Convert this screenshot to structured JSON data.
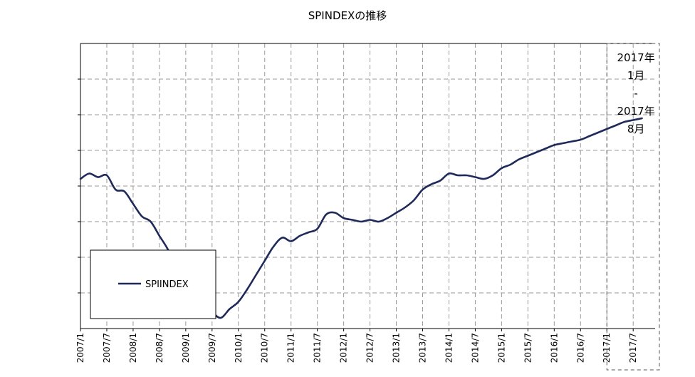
{
  "chart_data": {
    "type": "line",
    "title": "SPINDEXの推移",
    "xlabel": "",
    "ylabel": "",
    "grid": true,
    "y_tick_labels_shown": false,
    "legend_placement": "bottom-left",
    "x_tick_labels": [
      "2007/1",
      "2007/7",
      "2008/1",
      "2008/7",
      "2009/1",
      "2009/7",
      "2010/1",
      "2010/7",
      "2011/1",
      "2011/7",
      "2012/1",
      "2012/7",
      "2013/1",
      "2013/7",
      "2014/1",
      "2014/7",
      "2015/1",
      "2015/7",
      "2016/1",
      "2016/7",
      "2017/1",
      "2017/7"
    ],
    "x_range": [
      "2007/1",
      "2017/12"
    ],
    "y_range": [
      0,
      8
    ],
    "series": [
      {
        "name": "SPIINDEX",
        "color": "#1f2a5a",
        "x": [
          "2007/1",
          "2007/3",
          "2007/5",
          "2007/7",
          "2007/9",
          "2007/11",
          "2008/1",
          "2008/3",
          "2008/5",
          "2008/7",
          "2008/9",
          "2008/11",
          "2009/1",
          "2009/3",
          "2009/5",
          "2009/7",
          "2009/9",
          "2009/11",
          "2010/1",
          "2010/3",
          "2010/5",
          "2010/7",
          "2010/9",
          "2010/11",
          "2011/1",
          "2011/3",
          "2011/5",
          "2011/7",
          "2011/9",
          "2011/11",
          "2012/1",
          "2012/3",
          "2012/5",
          "2012/7",
          "2012/9",
          "2012/11",
          "2013/1",
          "2013/3",
          "2013/5",
          "2013/7",
          "2013/9",
          "2013/11",
          "2014/1",
          "2014/3",
          "2014/5",
          "2014/7",
          "2014/9",
          "2014/11",
          "2015/1",
          "2015/3",
          "2015/5",
          "2015/7",
          "2015/9",
          "2015/11",
          "2016/1",
          "2016/3",
          "2016/5",
          "2016/7",
          "2016/9",
          "2016/11",
          "2017/1",
          "2017/3",
          "2017/5",
          "2017/7",
          "2017/9"
        ],
        "values": [
          4.2,
          4.35,
          4.25,
          4.3,
          3.9,
          3.85,
          3.5,
          3.15,
          3.0,
          2.6,
          2.2,
          1.6,
          1.1,
          0.9,
          0.6,
          0.45,
          0.3,
          0.55,
          0.75,
          1.1,
          1.5,
          1.9,
          2.3,
          2.55,
          2.45,
          2.6,
          2.7,
          2.8,
          3.2,
          3.25,
          3.1,
          3.05,
          3.0,
          3.05,
          3.0,
          3.1,
          3.25,
          3.4,
          3.6,
          3.9,
          4.05,
          4.15,
          4.35,
          4.3,
          4.3,
          4.25,
          4.2,
          4.3,
          4.5,
          4.6,
          4.75,
          4.85,
          4.95,
          5.05,
          5.15,
          5.2,
          5.25,
          5.3,
          5.4,
          5.5,
          5.6,
          5.7,
          5.8,
          5.85,
          5.9
        ]
      }
    ],
    "annotation": {
      "text_lines": [
        "2017年",
        "1月",
        "-",
        "2017年",
        "8月"
      ],
      "span": [
        "2017/1",
        "2017/8"
      ],
      "style": "dashed-box"
    }
  }
}
